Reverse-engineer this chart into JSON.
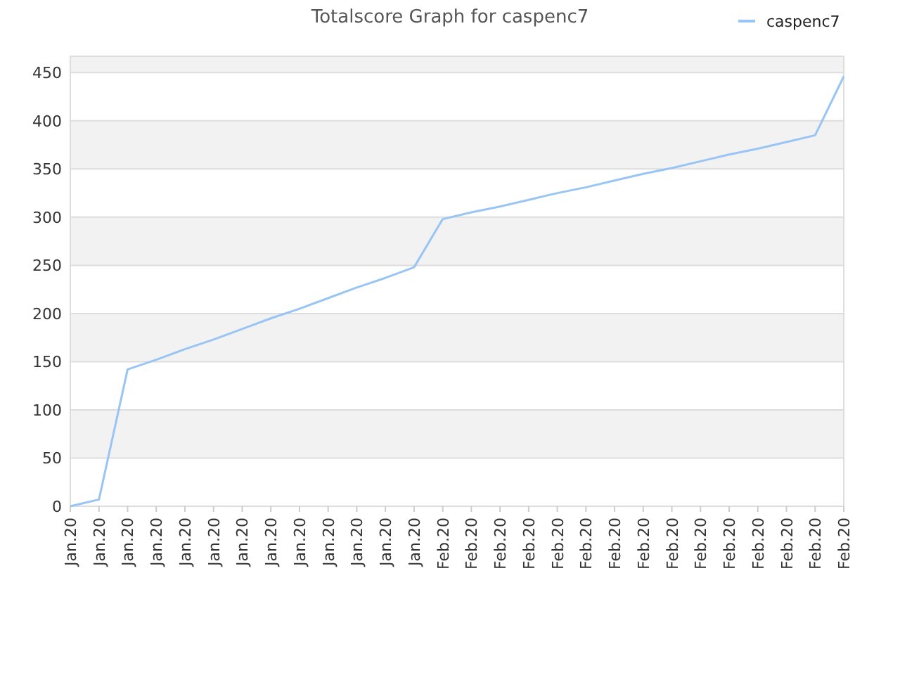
{
  "chart_data": {
    "type": "line",
    "title": "Totalscore Graph for caspenc7",
    "categories": [
      "Jan.20",
      "Jan.20",
      "Jan.20",
      "Jan.20",
      "Jan.20",
      "Jan.20",
      "Jan.20",
      "Jan.20",
      "Jan.20",
      "Jan.20",
      "Jan.20",
      "Jan.20",
      "Jan.20",
      "Feb.20",
      "Feb.20",
      "Feb.20",
      "Feb.20",
      "Feb.20",
      "Feb.20",
      "Feb.20",
      "Feb.20",
      "Feb.20",
      "Feb.20",
      "Feb.20",
      "Feb.20",
      "Feb.20",
      "Feb.20",
      "Feb.20"
    ],
    "series": [
      {
        "name": "caspenc7",
        "color": "#99c5f5",
        "values": [
          0,
          7,
          142,
          152,
          163,
          173,
          184,
          195,
          205,
          216,
          227,
          237,
          248,
          298,
          305,
          311,
          318,
          325,
          331,
          338,
          345,
          351,
          358,
          365,
          371,
          378,
          385,
          446
        ]
      }
    ],
    "ylim": [
      0,
      467
    ],
    "yticks": [
      0,
      50,
      100,
      150,
      200,
      250,
      300,
      350,
      400,
      450
    ],
    "grid": "y",
    "legend": "top right",
    "marker": "none",
    "line_style": "solid"
  }
}
